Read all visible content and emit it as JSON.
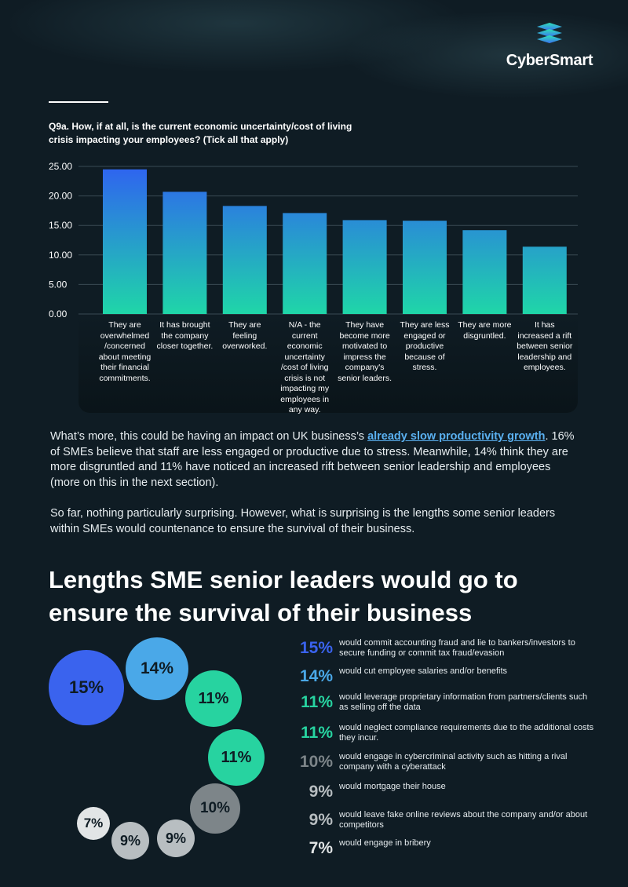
{
  "brand": {
    "name": "CyberSmart",
    "logo_icon": "stacked-layers-icon"
  },
  "question": "Q9a. How, if at all, is the current economic uncertainty/cost of living crisis impacting your employees? (Tick all that apply)",
  "chart_data": {
    "type": "bar",
    "categories": [
      "They are overwhelmed /concerned about meeting their financial commitments.",
      "It has brought the company closer together.",
      "They are feeling overworked.",
      "N/A - the current economic uncertainty /cost of living crisis is not impacting my employees in any way.",
      "They have become more motivated to impress the company's senior leaders.",
      "They are less engaged or productive because of stress.",
      "They are more disgruntled.",
      "It has increased a rift between senior leadership and employees."
    ],
    "values": [
      24.5,
      20.7,
      18.3,
      17.1,
      15.9,
      15.8,
      14.2,
      11.4
    ],
    "ylim": [
      0,
      25
    ],
    "yticks": [
      "0.00",
      "5.00",
      "10.00",
      "15.00",
      "20.00",
      "25.00"
    ],
    "grid": true,
    "colors": {
      "top": "#2f63f0",
      "bottom": "#1fd6a8"
    }
  },
  "paragraph1": {
    "before": "What’s more, this could be having an impact on UK business’s ",
    "link": "already slow productivity growth",
    "after": ". 16% of SMEs believe that staff are less engaged or productive due to stress. Meanwhile, 14% think they are more disgruntled and 11% have noticed an increased rift between senior leadership and employees (more on this in the next section)."
  },
  "paragraph2": "So far, nothing particularly surprising. However, what is surprising is the lengths some senior leaders within SMEs would countenance to ensure the survival of their business.",
  "heading": "Lengths SME senior leaders would go to ensure the survival of their business",
  "bubbles": [
    "15%",
    "14%",
    "11%",
    "11%",
    "10%",
    "9%",
    "9%",
    "7%"
  ],
  "stats": [
    {
      "pct": "15%",
      "desc": "would commit accounting fraud and lie to bankers/investors to secure funding or commit tax fraud/evasion",
      "color": "#3a63ee"
    },
    {
      "pct": "14%",
      "desc": "would cut employee salaries and/or benefits",
      "color": "#4aa8e8"
    },
    {
      "pct": "11%",
      "desc": "would leverage proprietary information from partners/clients such as selling off the data",
      "color": "#27d3a0"
    },
    {
      "pct": "11%",
      "desc": "would neglect compliance requirements due to the additional costs they incur.",
      "color": "#27d3a0"
    },
    {
      "pct": "10%",
      "desc": "would engage in cybercriminal activity such as hitting a rival company with a cyberattack",
      "color": "#7d8589"
    },
    {
      "pct": "9%",
      "desc": "would mortgage their house",
      "color": "#b8bec1"
    },
    {
      "pct": "9%",
      "desc": "would leave fake online reviews about the company and/or about competitors",
      "color": "#b8bec1"
    },
    {
      "pct": "7%",
      "desc": "would engage in bribery",
      "color": "#e2e5e6"
    }
  ]
}
